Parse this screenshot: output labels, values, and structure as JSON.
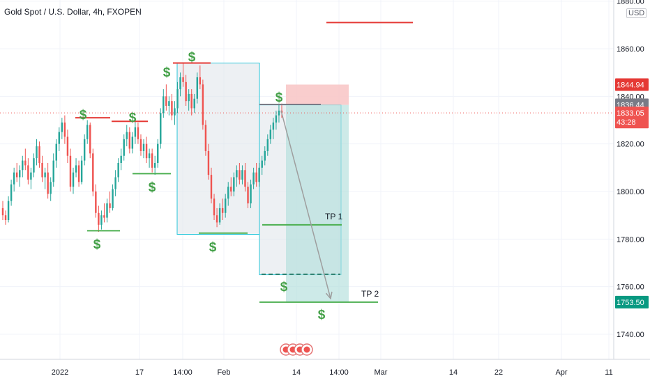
{
  "header": {
    "title": "Gold Spot / U.S. Dollar, 4h, FXOPEN",
    "currency": "USD"
  },
  "colors": {
    "up": "#26a69a",
    "down": "#ef5350",
    "green_line": "#4caf50",
    "red_line": "#e53935",
    "dollar": "#43a047",
    "box_stroke": "#26c6da",
    "box_fill": "#dfe3ea",
    "target_fill": "#b2dfdb",
    "stop_fill": "#f8c4c4",
    "current_price": "#ef5350",
    "last_price": "#787b86",
    "tp_tag": "#089981"
  },
  "chart_data": {
    "type": "candlestick",
    "title": "Gold Spot / U.S. Dollar, 4h, FXOPEN",
    "x_tick_labels": [
      "2022",
      "17",
      "14:00",
      "Feb",
      "14",
      "14:00",
      "Mar",
      "14",
      "22",
      "Apr",
      "11"
    ],
    "y_tick_labels": [
      "1880.00",
      "1860.00",
      "1840.00",
      "1820.00",
      "1800.00",
      "1780.00",
      "1760.00",
      "1740.00"
    ],
    "y_ticks": [
      1880,
      1860,
      1840,
      1820,
      1800,
      1780,
      1760,
      1740
    ],
    "ylim": [
      1730,
      1880
    ],
    "price_tags": [
      {
        "label": "1844.94",
        "value": 1844.94,
        "role": "stop"
      },
      {
        "label": "1836.44",
        "value": 1836.44,
        "role": "last"
      },
      {
        "label": "1833.05",
        "value": 1833.05,
        "role": "current"
      },
      {
        "label": "43:28",
        "value": 1829.2,
        "role": "countdown"
      },
      {
        "label": "1753.50",
        "value": 1753.5,
        "role": "target"
      }
    ],
    "current_price": 1833.05,
    "annotations": {
      "tp1_label": "TP 1",
      "tp1_price": 1786,
      "tp2_label": "TP 2",
      "tp2_price": 1753.5,
      "dollar_symbol": "$"
    },
    "candles": [
      [
        1793,
        1796,
        1788,
        1790
      ],
      [
        1790,
        1792,
        1786,
        1788
      ],
      [
        1788,
        1798,
        1787,
        1796
      ],
      [
        1796,
        1805,
        1794,
        1803
      ],
      [
        1803,
        1810,
        1800,
        1808
      ],
      [
        1808,
        1812,
        1804,
        1806
      ],
      [
        1806,
        1811,
        1802,
        1809
      ],
      [
        1809,
        1815,
        1806,
        1813
      ],
      [
        1813,
        1818,
        1809,
        1811
      ],
      [
        1811,
        1814,
        1803,
        1805
      ],
      [
        1805,
        1810,
        1801,
        1808
      ],
      [
        1808,
        1816,
        1806,
        1814
      ],
      [
        1814,
        1822,
        1811,
        1819
      ],
      [
        1819,
        1821,
        1810,
        1812
      ],
      [
        1812,
        1815,
        1804,
        1806
      ],
      [
        1806,
        1810,
        1801,
        1808
      ],
      [
        1808,
        1812,
        1797,
        1799
      ],
      [
        1799,
        1806,
        1796,
        1804
      ],
      [
        1804,
        1816,
        1802,
        1813
      ],
      [
        1813,
        1822,
        1810,
        1820
      ],
      [
        1820,
        1827,
        1817,
        1825
      ],
      [
        1825,
        1831,
        1822,
        1829
      ],
      [
        1829,
        1832,
        1820,
        1823
      ],
      [
        1823,
        1826,
        1812,
        1815
      ],
      [
        1815,
        1818,
        1800,
        1802
      ],
      [
        1802,
        1810,
        1799,
        1808
      ],
      [
        1808,
        1814,
        1806,
        1811
      ],
      [
        1811,
        1813,
        1802,
        1804
      ],
      [
        1804,
        1815,
        1803,
        1813
      ],
      [
        1813,
        1824,
        1811,
        1822
      ],
      [
        1822,
        1830,
        1820,
        1828
      ],
      [
        1828,
        1829,
        1814,
        1816
      ],
      [
        1816,
        1818,
        1798,
        1800
      ],
      [
        1800,
        1803,
        1789,
        1791
      ],
      [
        1791,
        1794,
        1783,
        1786
      ],
      [
        1786,
        1792,
        1784,
        1790
      ],
      [
        1790,
        1795,
        1787,
        1789
      ],
      [
        1789,
        1797,
        1787,
        1795
      ],
      [
        1795,
        1800,
        1791,
        1793
      ],
      [
        1793,
        1803,
        1792,
        1801
      ],
      [
        1801,
        1809,
        1798,
        1806
      ],
      [
        1806,
        1814,
        1804,
        1812
      ],
      [
        1812,
        1818,
        1809,
        1815
      ],
      [
        1815,
        1824,
        1813,
        1822
      ],
      [
        1822,
        1828,
        1819,
        1825
      ],
      [
        1825,
        1827,
        1816,
        1818
      ],
      [
        1818,
        1825,
        1816,
        1823
      ],
      [
        1823,
        1830,
        1820,
        1827
      ],
      [
        1827,
        1829,
        1820,
        1822
      ],
      [
        1822,
        1824,
        1815,
        1817
      ],
      [
        1817,
        1822,
        1814,
        1820
      ],
      [
        1820,
        1823,
        1812,
        1814
      ],
      [
        1814,
        1818,
        1810,
        1816
      ],
      [
        1816,
        1818,
        1808,
        1810
      ],
      [
        1810,
        1815,
        1807,
        1812
      ],
      [
        1812,
        1822,
        1810,
        1820
      ],
      [
        1820,
        1835,
        1818,
        1833
      ],
      [
        1833,
        1843,
        1831,
        1840
      ],
      [
        1840,
        1845,
        1834,
        1836
      ],
      [
        1836,
        1840,
        1832,
        1838
      ],
      [
        1838,
        1841,
        1830,
        1832
      ],
      [
        1832,
        1838,
        1828,
        1835
      ],
      [
        1835,
        1846,
        1833,
        1843
      ],
      [
        1843,
        1850,
        1840,
        1848
      ],
      [
        1848,
        1854,
        1844,
        1846
      ],
      [
        1846,
        1849,
        1836,
        1838
      ],
      [
        1838,
        1843,
        1834,
        1841
      ],
      [
        1841,
        1843,
        1832,
        1835
      ],
      [
        1835,
        1841,
        1833,
        1839
      ],
      [
        1839,
        1850,
        1837,
        1848
      ],
      [
        1848,
        1853,
        1843,
        1845
      ],
      [
        1845,
        1847,
        1826,
        1828
      ],
      [
        1828,
        1830,
        1815,
        1817
      ],
      [
        1817,
        1820,
        1805,
        1807
      ],
      [
        1807,
        1810,
        1795,
        1797
      ],
      [
        1797,
        1799,
        1788,
        1790
      ],
      [
        1790,
        1793,
        1785,
        1787
      ],
      [
        1787,
        1795,
        1786,
        1793
      ],
      [
        1793,
        1797,
        1788,
        1791
      ],
      [
        1791,
        1799,
        1789,
        1797
      ],
      [
        1797,
        1804,
        1794,
        1802
      ],
      [
        1802,
        1806,
        1798,
        1800
      ],
      [
        1800,
        1808,
        1798,
        1806
      ],
      [
        1806,
        1811,
        1802,
        1809
      ],
      [
        1809,
        1812,
        1803,
        1805
      ],
      [
        1805,
        1811,
        1803,
        1809
      ],
      [
        1809,
        1812,
        1800,
        1802
      ],
      [
        1802,
        1804,
        1793,
        1795
      ],
      [
        1795,
        1805,
        1793,
        1803
      ],
      [
        1803,
        1810,
        1801,
        1808
      ],
      [
        1808,
        1812,
        1802,
        1804
      ],
      [
        1804,
        1812,
        1802,
        1810
      ],
      [
        1810,
        1815,
        1807,
        1813
      ],
      [
        1813,
        1819,
        1811,
        1817
      ],
      [
        1817,
        1824,
        1815,
        1822
      ],
      [
        1822,
        1828,
        1820,
        1826
      ],
      [
        1826,
        1831,
        1822,
        1829
      ],
      [
        1829,
        1834,
        1826,
        1832
      ],
      [
        1832,
        1837,
        1829,
        1834
      ],
      [
        1834,
        1837,
        1831,
        1833
      ]
    ]
  }
}
